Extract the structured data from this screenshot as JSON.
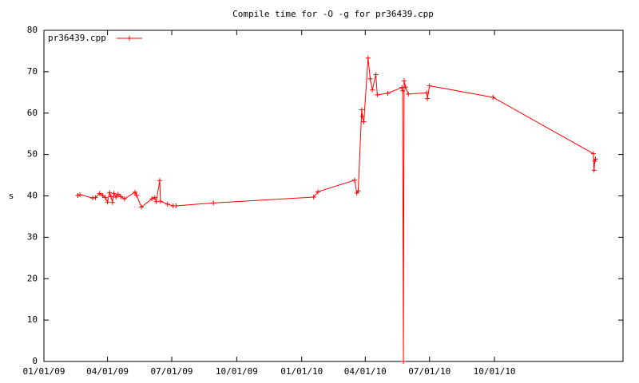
{
  "chart_data": {
    "type": "line",
    "title": "Compile time for -O -g for pr36439.cpp",
    "y_label": "s",
    "legend_position": "top-left",
    "xlim": [
      "2009-01-01",
      "2011-04-01"
    ],
    "xticks": [
      {
        "value": "2009-01-01",
        "label": "01/01/09"
      },
      {
        "value": "2009-04-01",
        "label": "04/01/09"
      },
      {
        "value": "2009-07-01",
        "label": "07/01/09"
      },
      {
        "value": "2009-10-01",
        "label": "10/01/09"
      },
      {
        "value": "2010-01-01",
        "label": "01/01/10"
      },
      {
        "value": "2010-04-01",
        "label": "04/01/10"
      },
      {
        "value": "2010-07-01",
        "label": "07/01/10"
      },
      {
        "value": "2010-10-01",
        "label": "10/01/10"
      }
    ],
    "ylim": [
      0,
      80
    ],
    "yticks": [
      0,
      10,
      20,
      30,
      40,
      50,
      60,
      70,
      80
    ],
    "x": [
      "2009-02-18",
      "2009-02-21",
      "2009-03-11",
      "2009-03-15",
      "2009-03-21",
      "2009-03-25",
      "2009-03-29",
      "2009-04-01",
      "2009-04-04",
      "2009-04-06",
      "2009-04-08",
      "2009-04-10",
      "2009-04-13",
      "2009-04-16",
      "2009-04-20",
      "2009-04-25",
      "2009-05-10",
      "2009-05-12",
      "2009-05-19",
      "2009-06-03",
      "2009-06-07",
      "2009-06-09",
      "2009-06-14",
      "2009-06-15",
      "2009-06-25",
      "2009-07-03",
      "2009-07-07",
      "2009-08-29",
      "2010-01-18",
      "2010-01-24",
      "2010-03-17",
      "2010-03-20",
      "2010-03-22",
      "2010-03-27",
      "2010-03-28",
      "2010-03-30",
      "2010-04-05",
      "2010-04-08",
      "2010-04-11",
      "2010-04-16",
      "2010-04-18",
      "2010-05-03",
      "2010-05-23",
      "2010-05-24",
      "2010-05-25",
      "2010-05-26",
      "2010-05-28",
      "2010-06-01",
      "2010-06-27",
      "2010-06-28",
      "2010-07-01",
      "2010-09-29",
      "2011-02-18",
      "2011-02-19",
      "2011-02-20",
      "2011-02-21"
    ],
    "series": [
      {
        "name": "pr36439.cpp",
        "color": "#ff0000",
        "values": [
          40.1,
          40.3,
          39.5,
          39.6,
          40.6,
          40.1,
          39.6,
          38.5,
          40.8,
          39.8,
          38.4,
          40.6,
          39.7,
          40.4,
          39.8,
          39.3,
          40.9,
          40.2,
          37.3,
          39.3,
          39.6,
          38.6,
          43.7,
          38.7,
          38.0,
          37.6,
          37.6,
          38.3,
          39.7,
          41.0,
          43.8,
          40.7,
          41.2,
          60.8,
          59.2,
          57.9,
          73.3,
          68.3,
          65.6,
          69.3,
          64.4,
          64.8,
          66.2,
          65.4,
          0,
          67.8,
          66.3,
          64.6,
          64.9,
          63.5,
          66.6,
          63.8,
          50.2,
          46.2,
          48.4,
          48.9
        ]
      }
    ]
  }
}
